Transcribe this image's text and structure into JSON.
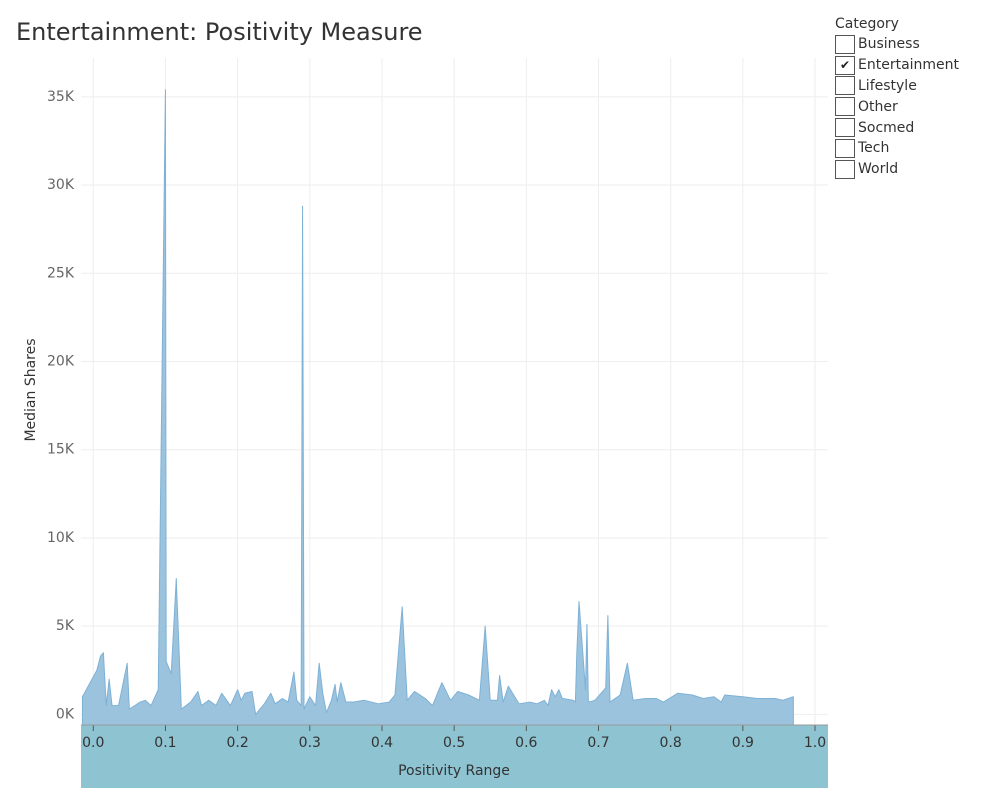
{
  "chart_data": {
    "type": "area",
    "title": "Entertainment: Positivity Measure",
    "x_label": "Positivity Range",
    "y_label": "Median Shares",
    "color": "#9bc3de",
    "line_color": "#7eb1d6",
    "grid": true,
    "xlim": [
      -0.017,
      1.018
    ],
    "ylim": [
      -600,
      37200
    ],
    "xticks": [
      {
        "value": 0,
        "label": "0.0"
      },
      0.1,
      0.2,
      0.3,
      0.4,
      0.5,
      0.6,
      0.7,
      0.8,
      0.9,
      {
        "value": 1,
        "label": "1.0"
      }
    ],
    "yticks": [
      {
        "value": 0,
        "label": "0K"
      },
      {
        "value": 5000,
        "label": "5K"
      },
      {
        "value": 10000,
        "label": "10K"
      },
      {
        "value": 15000,
        "label": "15K"
      },
      {
        "value": 20000,
        "label": "20K"
      },
      {
        "value": 25000,
        "label": "25K"
      },
      {
        "value": 30000,
        "label": "30K"
      },
      {
        "value": 35000,
        "label": "35K"
      }
    ],
    "x": [
      -0.015,
      0.005,
      0.01,
      0.014,
      0.018,
      0.022,
      0.026,
      0.035,
      0.047,
      0.05,
      0.065,
      0.072,
      0.08,
      0.09,
      0.1,
      0.101,
      0.108,
      0.115,
      0.122,
      0.135,
      0.145,
      0.15,
      0.16,
      0.17,
      0.178,
      0.19,
      0.2,
      0.205,
      0.21,
      0.22,
      0.225,
      0.237,
      0.246,
      0.252,
      0.262,
      0.27,
      0.278,
      0.282,
      0.288,
      0.29,
      0.292,
      0.3,
      0.308,
      0.313,
      0.318,
      0.323,
      0.33,
      0.335,
      0.338,
      0.343,
      0.35,
      0.36,
      0.375,
      0.395,
      0.41,
      0.418,
      0.428,
      0.435,
      0.445,
      0.46,
      0.47,
      0.483,
      0.495,
      0.505,
      0.52,
      0.535,
      0.543,
      0.55,
      0.56,
      0.563,
      0.568,
      0.575,
      0.59,
      0.605,
      0.615,
      0.625,
      0.63,
      0.635,
      0.64,
      0.645,
      0.65,
      0.665,
      0.668,
      0.67,
      0.673,
      0.682,
      0.684,
      0.686,
      0.695,
      0.71,
      0.713,
      0.716,
      0.73,
      0.74,
      0.748,
      0.765,
      0.78,
      0.79,
      0.81,
      0.83,
      0.845,
      0.86,
      0.87,
      0.875,
      0.9,
      0.92,
      0.945,
      0.955,
      0.97
    ],
    "values": [
      1000,
      2500,
      3300,
      3500,
      500,
      2000,
      500,
      500,
      2900,
      300,
      700,
      800,
      500,
      1400,
      35400,
      3000,
      2300,
      7700,
      300,
      700,
      1300,
      500,
      800,
      500,
      1200,
      500,
      1400,
      800,
      1200,
      1300,
      0,
      600,
      1200,
      600,
      900,
      700,
      2400,
      800,
      500,
      28800,
      300,
      1000,
      500,
      2900,
      1200,
      100,
      800,
      1700,
      700,
      1800,
      700,
      700,
      800,
      600,
      700,
      1100,
      6100,
      800,
      1300,
      900,
      500,
      1800,
      800,
      1300,
      1100,
      800,
      5000,
      800,
      800,
      2200,
      700,
      1600,
      600,
      700,
      600,
      800,
      500,
      1400,
      1000,
      1400,
      900,
      800,
      700,
      3500,
      6400,
      1400,
      5100,
      700,
      800,
      1500,
      5600,
      700,
      1100,
      2900,
      800,
      900,
      900,
      700,
      1200,
      1100,
      900,
      1000,
      700,
      1100,
      1000,
      900,
      900,
      800,
      1000
    ]
  },
  "filter": {
    "title": "Category",
    "options": [
      {
        "label": "Business",
        "checked": false
      },
      {
        "label": "Entertainment",
        "checked": true
      },
      {
        "label": "Lifestyle",
        "checked": false
      },
      {
        "label": "Other",
        "checked": false
      },
      {
        "label": "Socmed",
        "checked": false
      },
      {
        "label": "Tech",
        "checked": false
      },
      {
        "label": "World",
        "checked": false
      }
    ]
  }
}
